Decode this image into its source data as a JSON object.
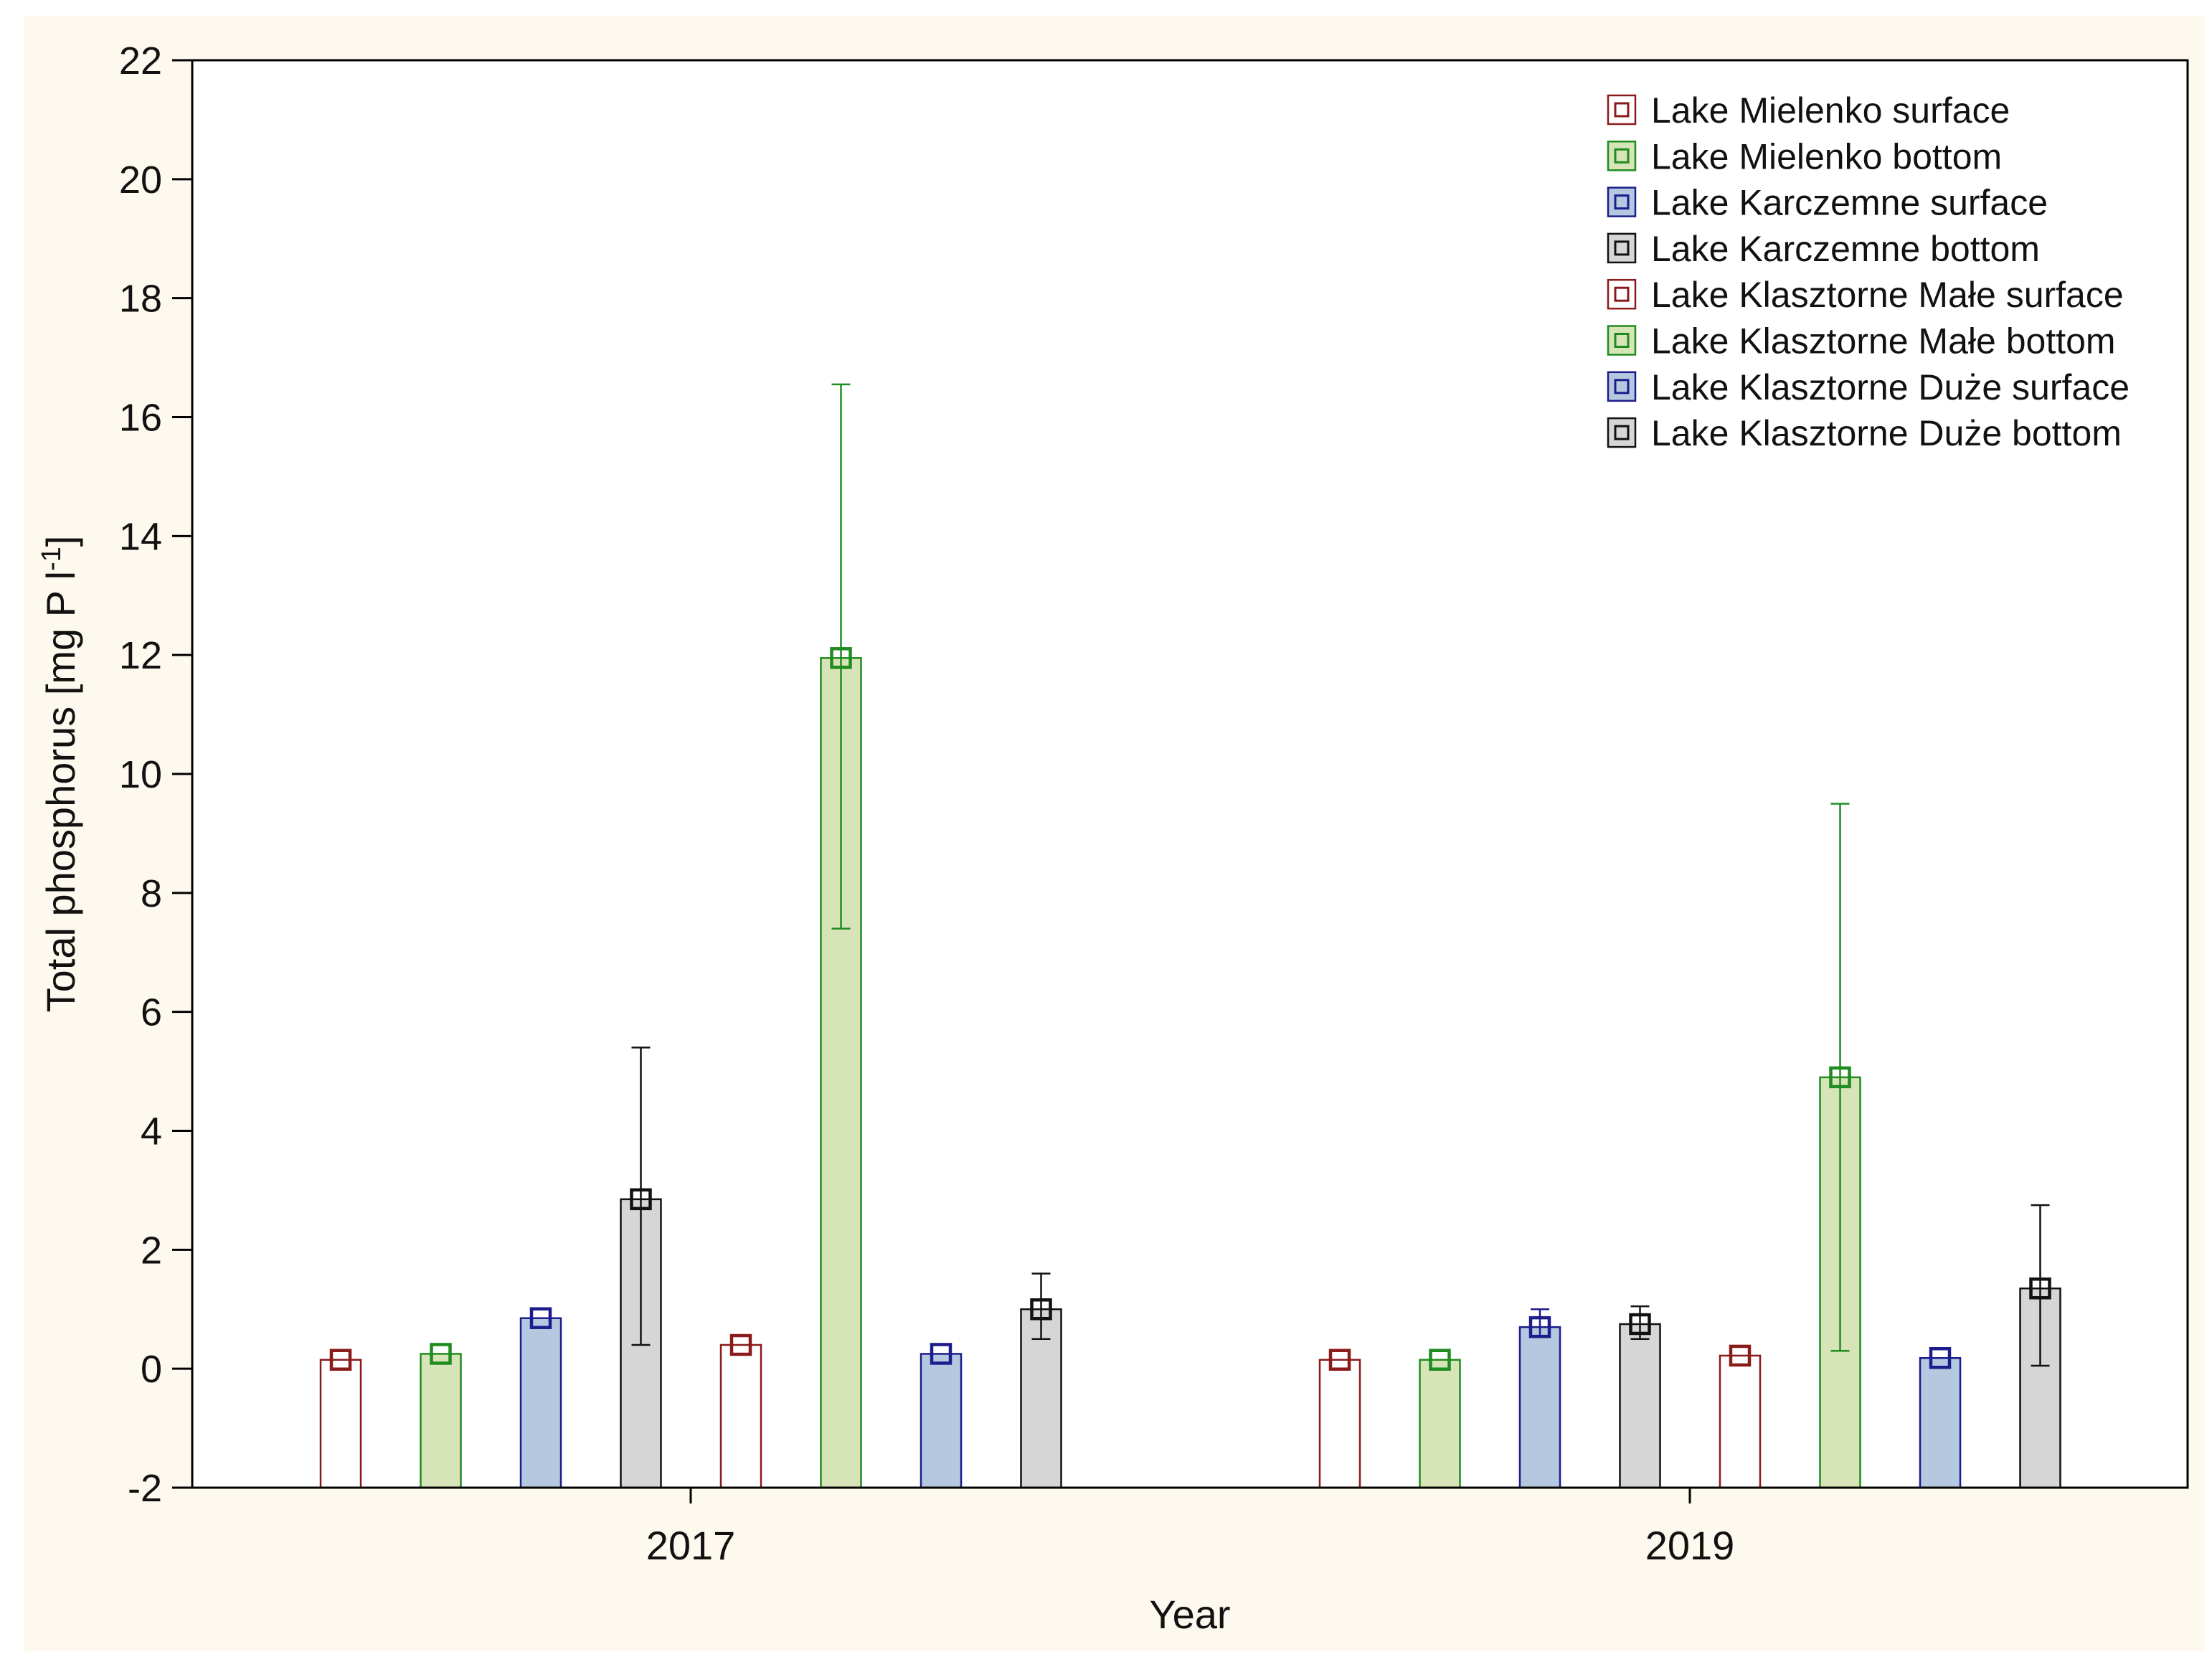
{
  "colors": {
    "background": "#fdf9ee",
    "plot_background": "#ffffff",
    "axis": "#000000"
  },
  "chart_data": {
    "type": "bar",
    "title": "",
    "xlabel": "Year",
    "ylabel_main": "Total phosphorus [mg P l",
    "ylabel_sup": "-1",
    "ylabel_close": "]",
    "ylim": [
      -2,
      22
    ],
    "yticks": [
      -2,
      0,
      2,
      4,
      6,
      8,
      10,
      12,
      14,
      16,
      18,
      20,
      22
    ],
    "grid": false,
    "legend_position": "top-right",
    "categories": [
      "2017",
      "2019"
    ],
    "series": [
      {
        "name": "Lake Mielenko surface",
        "fill": "#ffffff",
        "edge": "#8b1a1a",
        "values": [
          0.15,
          0.15
        ],
        "err_low": [
          0.15,
          0.15
        ],
        "err_high": [
          0.15,
          0.15
        ]
      },
      {
        "name": "Lake Mielenko bottom",
        "fill": "#d6e4b8",
        "edge": "#1e8c1e",
        "values": [
          0.25,
          0.15
        ],
        "err_low": [
          0.25,
          0.15
        ],
        "err_high": [
          0.25,
          0.15
        ]
      },
      {
        "name": "Lake Karczemne surface",
        "fill": "#b4c8e0",
        "edge": "#1c1c8c",
        "values": [
          0.85,
          0.7
        ],
        "err_low": [
          0.85,
          0.55
        ],
        "err_high": [
          0.85,
          1.0
        ]
      },
      {
        "name": "Lake Karczemne bottom",
        "fill": "#d6d6d6",
        "edge": "#111111",
        "values": [
          2.85,
          0.75
        ],
        "err_low": [
          0.4,
          0.5
        ],
        "err_high": [
          5.4,
          1.05
        ]
      },
      {
        "name": "Lake Klasztorne Małe surface",
        "fill": "#ffffff",
        "edge": "#8b1a1a",
        "values": [
          0.4,
          0.22
        ],
        "err_low": [
          0.4,
          0.22
        ],
        "err_high": [
          0.4,
          0.22
        ]
      },
      {
        "name": "Lake Klasztorne Małe bottom",
        "fill": "#d6e4b8",
        "edge": "#1e8c1e",
        "values": [
          11.95,
          4.9
        ],
        "err_low": [
          7.4,
          0.3
        ],
        "err_high": [
          16.55,
          9.5
        ]
      },
      {
        "name": "Lake Klasztorne Duże surface",
        "fill": "#b4c8e0",
        "edge": "#1c1c8c",
        "values": [
          0.25,
          0.18
        ],
        "err_low": [
          0.25,
          0.18
        ],
        "err_high": [
          0.25,
          0.18
        ]
      },
      {
        "name": "Lake Klasztorne Duże bottom",
        "fill": "#d6d6d6",
        "edge": "#111111",
        "values": [
          1.0,
          1.35
        ],
        "err_low": [
          0.5,
          0.05
        ],
        "err_high": [
          1.6,
          2.75
        ]
      }
    ]
  }
}
